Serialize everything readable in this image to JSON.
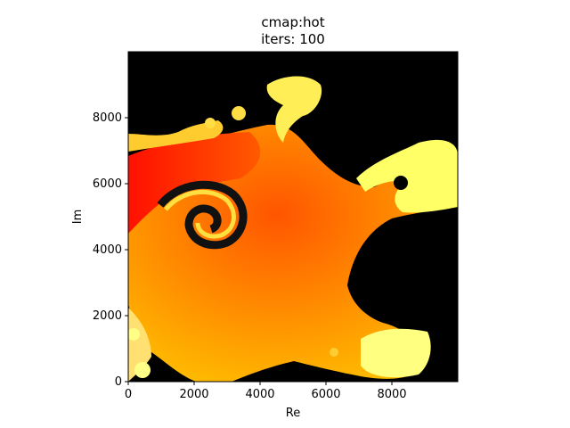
{
  "chart_data": {
    "type": "heatmap",
    "title": "cmap:hot",
    "subtitle": "iters: 100",
    "colormap": "hot",
    "xlabel": "Re",
    "ylabel": "Im",
    "xlim": [
      0,
      10000
    ],
    "ylim": [
      0,
      10000
    ],
    "xticks": [
      0,
      2000,
      4000,
      6000,
      8000
    ],
    "yticks": [
      0,
      2000,
      4000,
      6000,
      8000
    ],
    "xtick_labels": [
      "0",
      "2000",
      "4000",
      "6000",
      "8000"
    ],
    "ytick_labels": [
      "0",
      "2000",
      "4000",
      "6000",
      "8000"
    ],
    "grid": false,
    "colors": {
      "background": "#000000",
      "escape_high": "#ffff60",
      "escape_mid": "#ffaa00",
      "escape_low": "#ff0000"
    }
  }
}
